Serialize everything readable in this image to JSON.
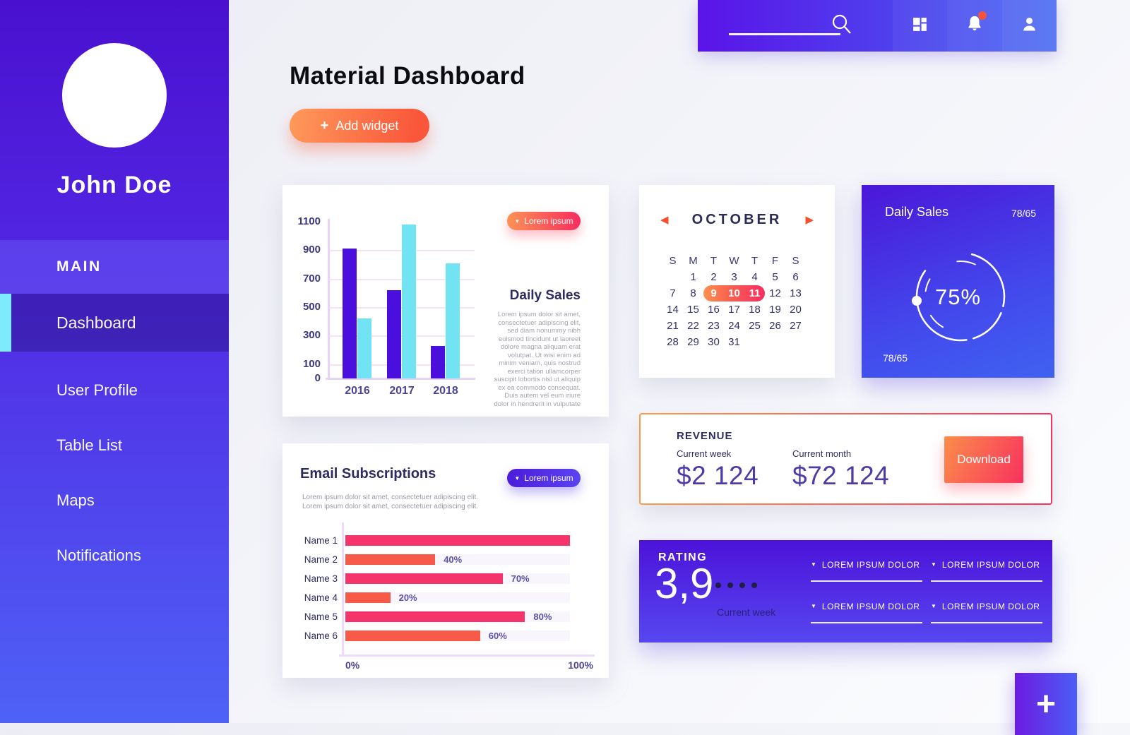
{
  "palette": {
    "sidebar_top": "#4a10d0",
    "sidebar_bottom": "#4e62f6",
    "accent_cyan": "#7debfb",
    "orange_gradient_from": "#ff9a5b",
    "orange_gradient_to": "#f9563a",
    "pink_bar": "#f4346b",
    "orange_red_bar": "#f85a49",
    "purple_bar": "#4a0fdc",
    "cyan_bar": "#72e3f3",
    "navy_text": "#2d2b55",
    "purple_value_text": "#4e3ba5",
    "purple_card_from": "#4b17d8",
    "purple_card_to": "#3f62f0"
  },
  "sidebar": {
    "user_name": "John Doe",
    "section_label": "MAIN",
    "items": [
      {
        "label": "Dashboard",
        "active": true
      },
      {
        "label": "User Profile",
        "active": false
      },
      {
        "label": "Table List",
        "active": false
      },
      {
        "label": "Maps",
        "active": false
      },
      {
        "label": "Notifications",
        "active": false
      }
    ]
  },
  "topbar": {
    "search_value": "",
    "bell_has_notification": true
  },
  "page": {
    "title": "Material Dashboard",
    "add_widget_icon": "+",
    "add_widget_label": "Add widget"
  },
  "sales_chart_card": {
    "dropdown_icon": "▼",
    "dropdown_label": "Lorem ipsum",
    "heading": "Daily Sales",
    "paragraph": "Lorem ipsum dolor sit amet, consectetuer adipiscing elit, sed diam nonummy nibh euismod tincidunt ut laoreet dolore magna aliquam erat volutpat. Ut wisi enim ad minim veniam, quis nostrud exerci tation ullamcorper suscipit lobortis nisl ut aliquip ex ea commodo consequat. Duis autem vel eum iriure dolor in hendrerit in vulputate",
    "chart": {
      "type": "bar",
      "categories": [
        "2016",
        "2017",
        "2018"
      ],
      "series": [
        {
          "name": "series-purple",
          "color": "#4a0fdc",
          "values": [
            910,
            620,
            230
          ]
        },
        {
          "name": "series-cyan",
          "color": "#72e3f3",
          "values": [
            420,
            1080,
            810
          ]
        }
      ],
      "y_ticks": [
        1100,
        900,
        700,
        500,
        300,
        100,
        0
      ],
      "gridlines": [
        900,
        700,
        500,
        300,
        100
      ],
      "ylim": [
        0,
        1100
      ]
    }
  },
  "calendar_card": {
    "prev_icon": "◀",
    "next_icon": "▶",
    "month": "OCTOBER",
    "day_headers": [
      "S",
      "M",
      "T",
      "W",
      "T",
      "F",
      "S"
    ],
    "first_day_offset": 1,
    "days_in_month": 31,
    "highlighted_days": [
      9,
      10,
      11
    ]
  },
  "daily_sales_card": {
    "title": "Daily Sales",
    "top_right_value": "78/65",
    "percent": "75%",
    "bottom_left_value": "78/65"
  },
  "email_card": {
    "title": "Email Subscriptions",
    "dropdown_icon": "▼",
    "dropdown_label": "Lorem ipsum",
    "subtitle_lines": [
      "Lorem ipsum dolor sit amet, consectetuer adipiscing elit.",
      "Lorem ipsum dolor sit amet, consectetuer adipiscing elit."
    ],
    "chart": {
      "type": "bar-horizontal",
      "categories": [
        "Name 1",
        "Name 2",
        "Name 3",
        "Name 4",
        "Name 5",
        "Name 6"
      ],
      "values": [
        100,
        40,
        70,
        20,
        80,
        60
      ],
      "value_labels": [
        "",
        "40%",
        "70%",
        "20%",
        "80%",
        "60%"
      ],
      "bar_colors": [
        "#f4346b",
        "#f85a49",
        "#f4346b",
        "#f85a49",
        "#f4346b",
        "#f85a49"
      ],
      "x_ticks": [
        "0%",
        "100%"
      ],
      "xlim": [
        0,
        100
      ]
    }
  },
  "revenue_card": {
    "title": "REVENUE",
    "week_label": "Current week",
    "week_value": "$2 124",
    "month_label": "Current month",
    "month_value": "$72 124",
    "download_label": "Download"
  },
  "rating_card": {
    "title": "RATING",
    "value": "3,9",
    "dots_count": 4,
    "caption": "Current week",
    "dropdown_icon": "▼",
    "dropdowns": [
      "LOREM IPSUM DOLOR",
      "LOREM IPSUM DOLOR",
      "LOREM IPSUM DOLOR",
      "LOREM IPSUM DOLOR"
    ]
  },
  "fab": {
    "icon": "+"
  }
}
